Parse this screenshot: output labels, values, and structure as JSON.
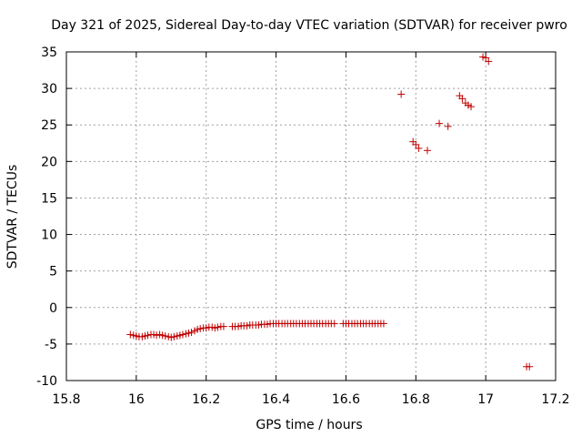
{
  "chart_data": {
    "type": "scatter",
    "title": "Day 321 of 2025, Sidereal Day-to-day VTEC variation (SDTVAR) for receiver pwro",
    "xlabel": "GPS time / hours",
    "ylabel": "SDTVAR / TECUs",
    "xlim": [
      15.8,
      17.2
    ],
    "ylim": [
      -10,
      35
    ],
    "xticks": [
      15.8,
      16,
      16.2,
      16.4,
      16.6,
      16.8,
      17,
      17.2
    ],
    "yticks": [
      -10,
      -5,
      0,
      5,
      10,
      15,
      20,
      25,
      30,
      35
    ],
    "xtick_labels": [
      "15.8",
      "16",
      "16.2",
      "16.4",
      "16.6",
      "16.8",
      "17",
      "17.2"
    ],
    "ytick_labels": [
      "-10",
      "-5",
      "0",
      "5",
      "10",
      "15",
      "20",
      "25",
      "30",
      "35"
    ],
    "grid": true,
    "marker": "+",
    "color": "#c00000",
    "series": [
      {
        "name": "SDTVAR",
        "x": [
          15.983,
          15.992,
          16.0,
          16.008,
          16.017,
          16.025,
          16.033,
          16.042,
          16.05,
          16.058,
          16.067,
          16.075,
          16.083,
          16.092,
          16.1,
          16.108,
          16.117,
          16.125,
          16.133,
          16.142,
          16.15,
          16.158,
          16.167,
          16.175,
          16.183,
          16.192,
          16.2,
          16.208,
          16.217,
          16.225,
          16.233,
          16.242,
          16.25,
          16.275,
          16.283,
          16.292,
          16.3,
          16.308,
          16.317,
          16.325,
          16.333,
          16.342,
          16.35,
          16.358,
          16.367,
          16.375,
          16.383,
          16.392,
          16.4,
          16.408,
          16.417,
          16.425,
          16.433,
          16.442,
          16.45,
          16.458,
          16.467,
          16.475,
          16.483,
          16.492,
          16.5,
          16.508,
          16.517,
          16.525,
          16.533,
          16.542,
          16.55,
          16.558,
          16.567,
          16.592,
          16.6,
          16.608,
          16.617,
          16.625,
          16.633,
          16.642,
          16.65,
          16.658,
          16.667,
          16.675,
          16.683,
          16.692,
          16.7,
          16.708,
          16.758,
          16.792,
          16.8,
          16.808,
          16.833,
          16.867,
          16.892,
          16.925,
          16.933,
          16.942,
          16.95,
          16.958,
          16.992,
          17.0,
          17.008,
          17.117,
          17.125
        ],
        "y": [
          -3.7,
          -3.8,
          -3.9,
          -4.0,
          -4.0,
          -3.9,
          -3.8,
          -3.7,
          -3.7,
          -3.8,
          -3.7,
          -3.8,
          -3.9,
          -4.0,
          -4.1,
          -4.0,
          -3.9,
          -3.8,
          -3.7,
          -3.6,
          -3.5,
          -3.4,
          -3.2,
          -3.0,
          -2.9,
          -2.8,
          -2.8,
          -2.7,
          -2.7,
          -2.8,
          -2.7,
          -2.6,
          -2.6,
          -2.6,
          -2.6,
          -2.6,
          -2.5,
          -2.5,
          -2.5,
          -2.4,
          -2.4,
          -2.4,
          -2.4,
          -2.3,
          -2.3,
          -2.3,
          -2.2,
          -2.2,
          -2.2,
          -2.2,
          -2.2,
          -2.2,
          -2.2,
          -2.2,
          -2.2,
          -2.2,
          -2.2,
          -2.2,
          -2.2,
          -2.2,
          -2.2,
          -2.2,
          -2.2,
          -2.2,
          -2.2,
          -2.2,
          -2.2,
          -2.2,
          -2.2,
          -2.2,
          -2.2,
          -2.2,
          -2.2,
          -2.2,
          -2.2,
          -2.2,
          -2.2,
          -2.2,
          -2.2,
          -2.2,
          -2.2,
          -2.2,
          -2.2,
          -2.2,
          29.2,
          22.7,
          22.3,
          21.8,
          21.5,
          25.2,
          24.8,
          29.0,
          28.6,
          28.0,
          27.7,
          27.5,
          34.3,
          34.2,
          33.7,
          -8.1,
          -8.1
        ]
      }
    ]
  }
}
